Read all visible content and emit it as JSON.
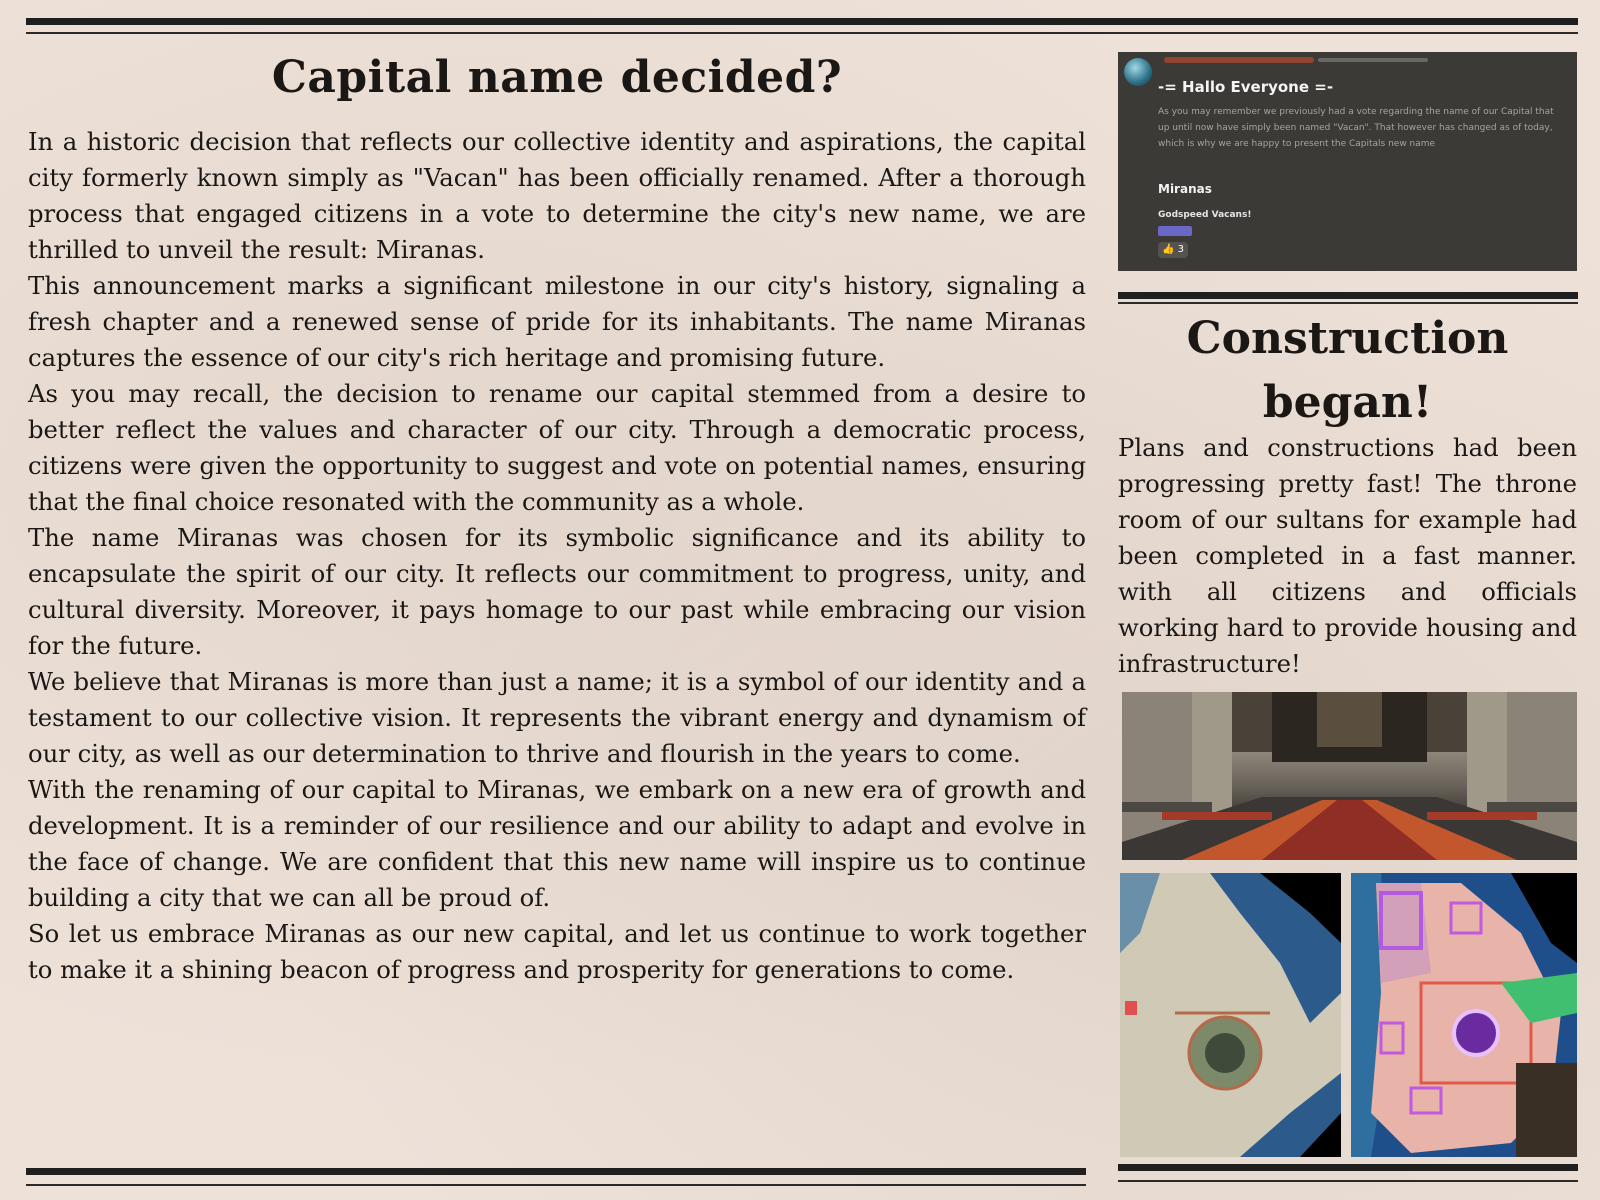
{
  "article": {
    "title": "Capital name decided?",
    "paragraphs": [
      "In a historic decision that reflects our collective identity and aspirations, the capital city formerly known simply as \"Vacan\" has been officially renamed. After a thorough process that engaged citizens in a vote to determine the city's new name, we are thrilled to unveil the result: Miranas.",
      "This announcement marks a significant milestone in our city's history, signaling a fresh chapter and a renewed sense of pride for its inhabitants. The name Miranas captures the essence of our city's rich heritage and promising future.",
      "As you may recall, the decision to rename our capital stemmed from a desire to better reflect the values and character of our city. Through a democratic process, citizens were given the opportunity to suggest and vote on potential names, ensuring that the final choice resonated with the community as a whole.",
      "The name Miranas was chosen for its symbolic significance and its ability to encapsulate the spirit of our city. It reflects our commitment to progress, unity, and cultural diversity. Moreover, it pays homage to our past while embracing our vision for the future.",
      "We believe that Miranas is more than just a name; it is a symbol of our identity and a testament to our collective vision. It represents the vibrant energy and dynamism of our city, as well as our determination to thrive and flourish in the years to come.",
      "With the renaming of our capital to Miranas, we embark on a new era of growth and development. It is a reminder of our resilience and our ability to adapt and evolve in the face of change. We are confident that this new name will inspire us to continue building a city that we can all be proud of.",
      "So let us embrace Miranas as our new capital, and let us continue to work together to make it a shining beacon of progress and prosperity for generations to come."
    ]
  },
  "chat": {
    "heading": "-= Hallo Everyone =-",
    "body": "As you may remember we previously had a vote regarding the name of our Capital that up until now have simply been named \"Vacan\". That however has changed as of today, which is why we are happy to present the Capitals new name",
    "name": "Miranas",
    "signature": "Godspeed Vacans!",
    "reaction": "👍 3"
  },
  "construction": {
    "title_line1": "Construction",
    "title_line2": "began!",
    "text": "Plans and constructions had been progressing pretty fast! The throne room of our sultans for example had been completed in a fast manner. with all citizens and officials working hard to provide housing and infrastructure!"
  }
}
